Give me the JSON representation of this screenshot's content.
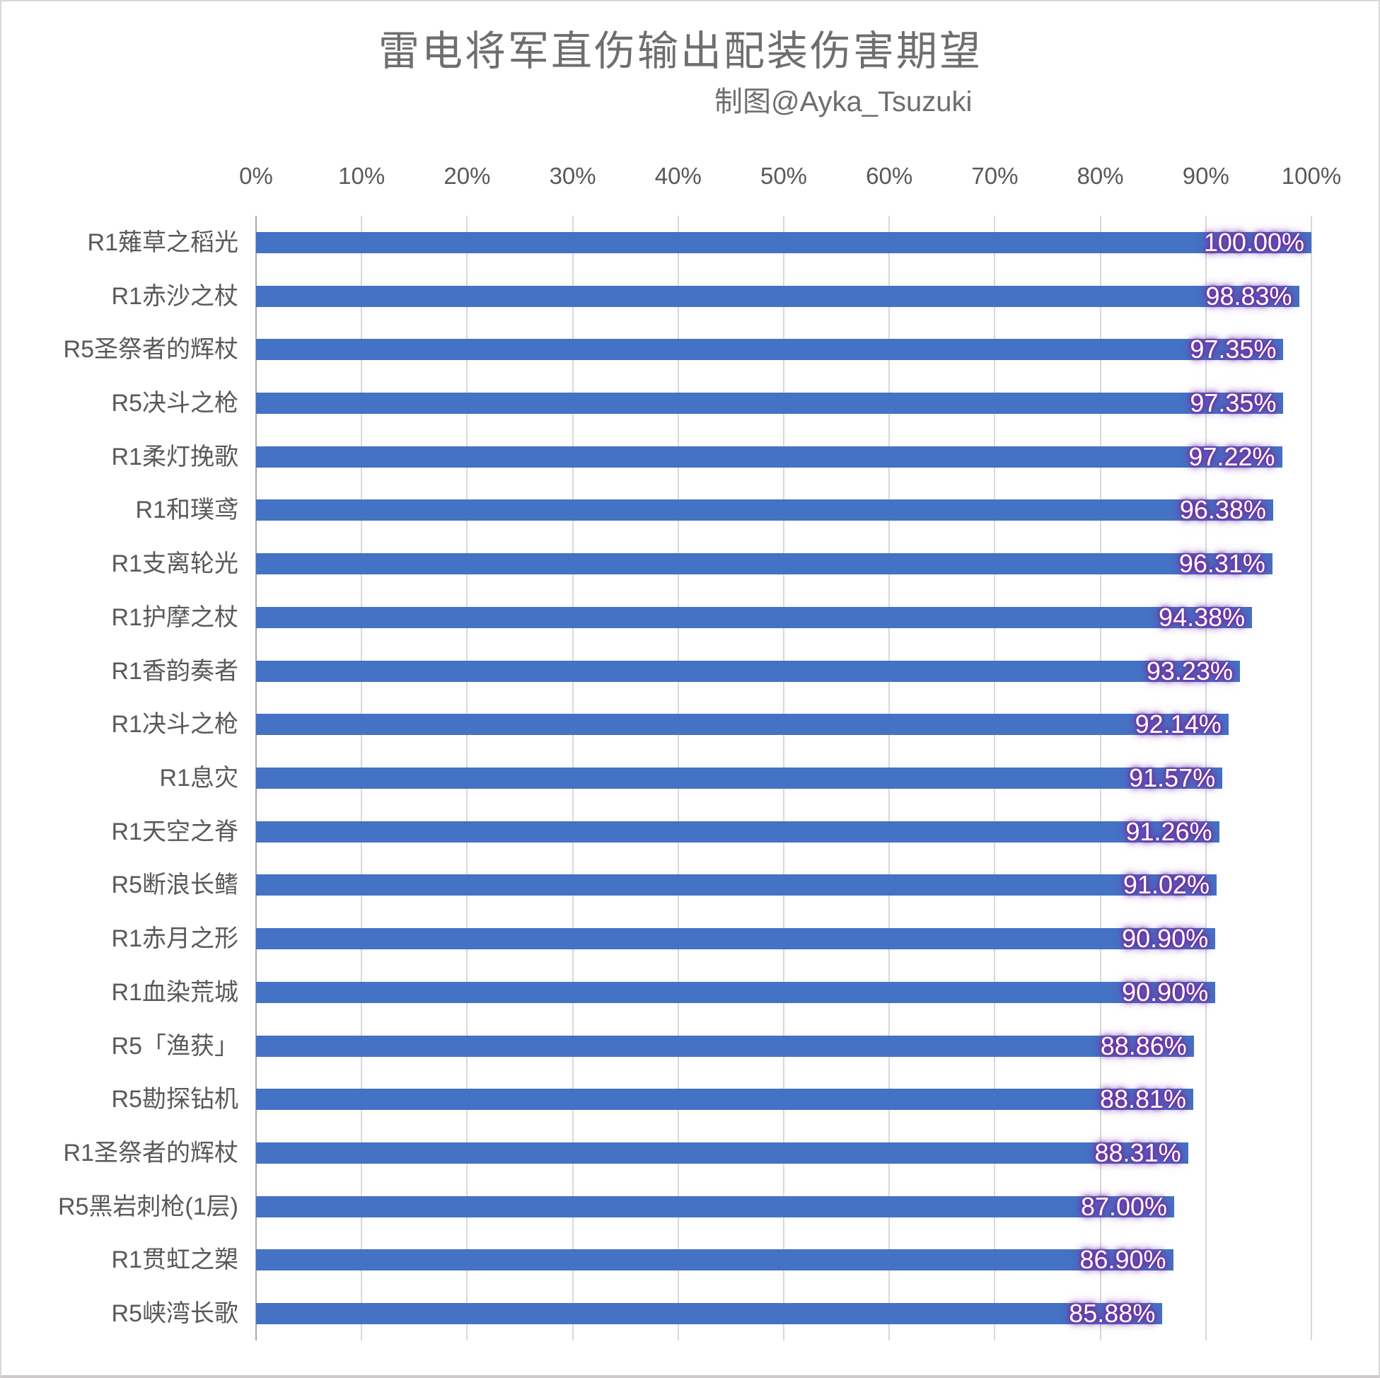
{
  "chart_data": {
    "type": "bar",
    "orientation": "horizontal",
    "title": "雷电将军直伤输出配装伤害期望",
    "subtitle": "制图@Ayka_Tsuzuki",
    "categories": [
      "R1薙草之稻光",
      "R1赤沙之杖",
      "R5圣祭者的辉杖",
      "R5决斗之枪",
      "R1柔灯挽歌",
      "R1和璞鸢",
      "R1支离轮光",
      "R1护摩之杖",
      "R1香韵奏者",
      "R1决斗之枪",
      "R1息灾",
      "R1天空之脊",
      "R5断浪长鳍",
      "R1赤月之形",
      "R1血染荒城",
      "R5「渔获」",
      "R5勘探钻机",
      "R1圣祭者的辉杖",
      "R5黑岩刺枪(1层)",
      "R1贯虹之槊",
      "R5峡湾长歌"
    ],
    "values": [
      100.0,
      98.83,
      97.35,
      97.35,
      97.22,
      96.38,
      96.31,
      94.38,
      93.23,
      92.14,
      91.57,
      91.26,
      91.02,
      90.9,
      90.9,
      88.86,
      88.81,
      88.31,
      87.0,
      86.9,
      85.88
    ],
    "value_labels": [
      "100.00%",
      "98.83%",
      "97.35%",
      "97.35%",
      "97.22%",
      "96.38%",
      "96.31%",
      "94.38%",
      "93.23%",
      "92.14%",
      "91.57%",
      "91.26%",
      "91.02%",
      "90.90%",
      "90.90%",
      "88.86%",
      "88.81%",
      "88.31%",
      "87.00%",
      "86.90%",
      "85.88%"
    ],
    "x_axis": {
      "position": "top",
      "min": 0,
      "max": 100,
      "tick_step": 10,
      "ticks": [
        "0%",
        "10%",
        "20%",
        "30%",
        "40%",
        "50%",
        "60%",
        "70%",
        "80%",
        "90%",
        "100%"
      ]
    },
    "grid": true,
    "legend": false,
    "data_label_position": "inside-end",
    "colors": {
      "bar": "#4472C4",
      "value_text": "#FFFFFF",
      "value_glow": "#7030A0",
      "axis_text": "#595959",
      "category_text": "#595959",
      "title_text": "#6E6E6E",
      "gridline": "#D9D9D9",
      "axis_line": "#A9A9A9",
      "border": "#D9D9D9",
      "background": "#FFFFFF"
    }
  }
}
